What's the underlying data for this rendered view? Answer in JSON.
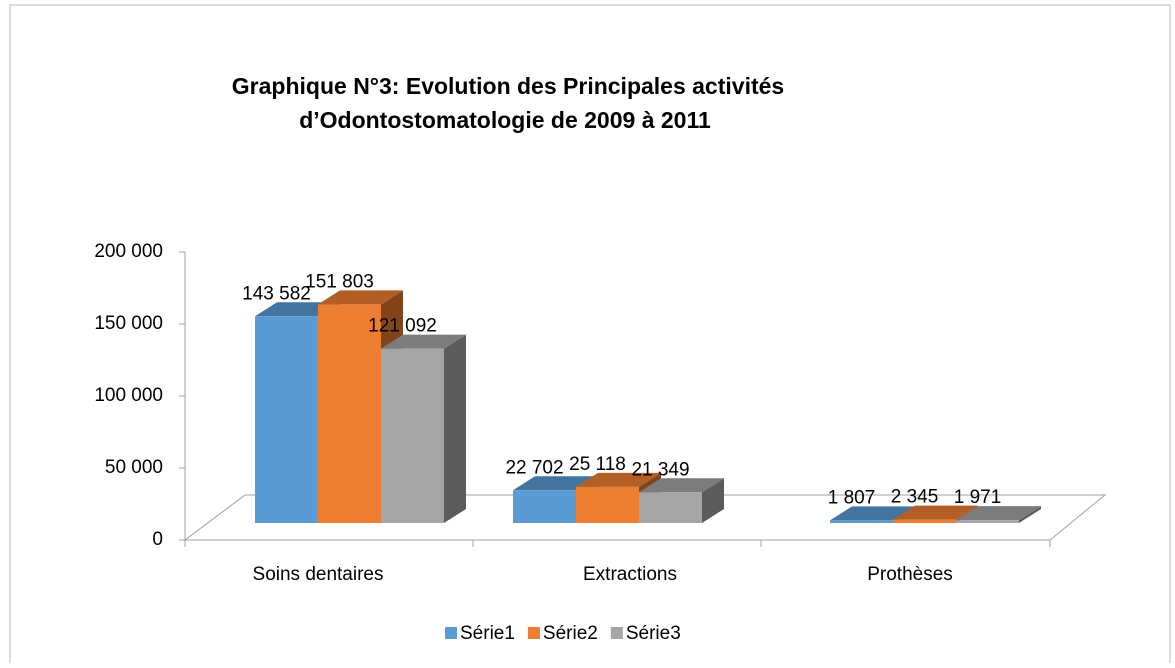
{
  "chart_data": {
    "type": "bar3d",
    "title": [
      "Graphique N°3: Evolution des Principales activités",
      "d’Odontostomatologie de 2009 à 2011"
    ],
    "categories": [
      "Soins dentaires",
      "Extractions",
      "Prothèses"
    ],
    "series": [
      {
        "name": "Série1",
        "color": "#5b9bd5",
        "values": [
          143582,
          22702,
          1807
        ],
        "value_labels": [
          "143 582",
          "22 702",
          "1 807"
        ]
      },
      {
        "name": "Série2",
        "color": "#ed7d31",
        "values": [
          151803,
          25118,
          2345
        ],
        "value_labels": [
          "151 803",
          "25 118",
          "2 345"
        ]
      },
      {
        "name": "Série3",
        "color": "#a5a5a5",
        "values": [
          121092,
          21349,
          1971
        ],
        "value_labels": [
          "121 092",
          "21 349",
          "1 971"
        ]
      }
    ],
    "ylim": [
      0,
      200000
    ],
    "yticks": [
      {
        "value": 0,
        "label": "0"
      },
      {
        "value": 50000,
        "label": "50 000"
      },
      {
        "value": 100000,
        "label": "100 000"
      },
      {
        "value": 150000,
        "label": "150 000"
      },
      {
        "value": 200000,
        "label": "200 000"
      }
    ],
    "legend": "bottom"
  }
}
